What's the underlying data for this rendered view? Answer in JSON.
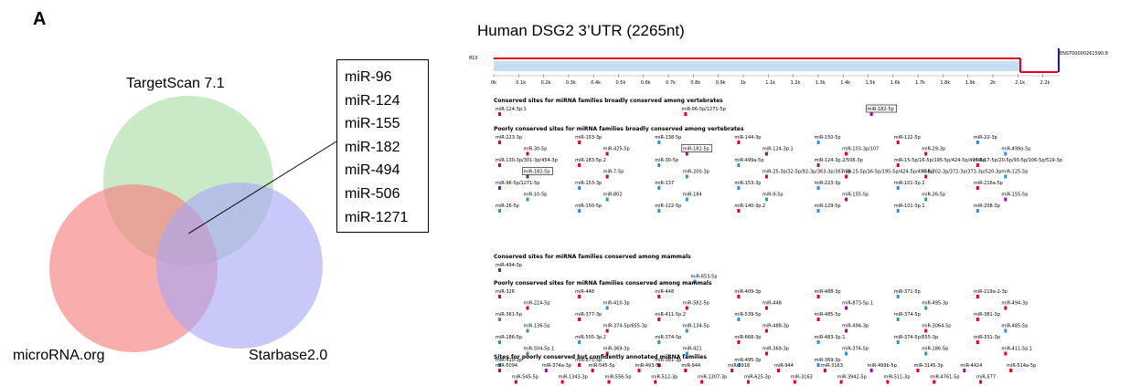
{
  "panel_label": "A",
  "venn": {
    "labels": {
      "targetscan": "TargetScan 7.1",
      "microrna": "microRNA.org",
      "starbase": "Starbase2.0"
    },
    "colors": {
      "targetscan": "#a9dca4",
      "microrna": "#f77b7b",
      "starbase": "#a6a6f5"
    },
    "shared_mirnas": [
      "miR-96",
      "miR-124",
      "miR-155",
      "miR-182",
      "miR-494",
      "miR-506",
      "miR-1271"
    ]
  },
  "utr_panel": {
    "title": "Human DSG2 3’UTR (2265nt)",
    "row_label": "810",
    "transcript_id": "ENST00000261590.8",
    "axis_ticks": [
      "0k",
      "0.1k",
      "0.2k",
      "0.3k",
      "0.4k",
      "0.5k",
      "0.6k",
      "0.7k",
      "0.8k",
      "0.9k",
      "1k",
      "1.1k",
      "1.2k",
      "1.3k",
      "1.4k",
      "1.5k",
      "1.6k",
      "1.7k",
      "1.8k",
      "1.9k",
      "2k",
      "2.1k",
      "2.2k"
    ],
    "colors": {
      "line": "#e4001b",
      "utr_fill": "#c7dff0",
      "end_bar": "#1515d8",
      "mark_red": "#e4001b",
      "mark_purple": "#8a1a8a",
      "mark_blue": "#2f8fd6"
    },
    "sections": [
      {
        "header": "Conserved sites for miRNA families broadly conserved among vertebrates",
        "sites": [
          {
            "label": "miR-124-3p.1",
            "c": "mark_red"
          },
          {
            "label": "miR-96-5p/1271-5p",
            "c": "mark_red"
          },
          {
            "label": "miR-182-5p",
            "c": "mark_purple",
            "boxed": true
          }
        ]
      },
      {
        "header": "Poorly conserved sites for miRNA families broadly conserved among vertebrates",
        "sites": [
          {
            "label": "miR-223-3p",
            "c": "mark_red"
          },
          {
            "label": "miR-153-3p",
            "c": "mark_red"
          },
          {
            "label": "miR-138-5p",
            "c": "mark_blue"
          },
          {
            "label": "miR-144-3p",
            "c": "mark_red"
          },
          {
            "label": "miR-150-5p",
            "c": "mark_blue"
          },
          {
            "label": "miR-122-5p",
            "c": "mark_red"
          },
          {
            "label": "miR-22-3p",
            "c": "mark_blue"
          },
          {
            "label": "miR-30-5p",
            "c": "mark_red"
          },
          {
            "label": "miR-425-5p",
            "c": "mark_red"
          },
          {
            "label": "miR-182-5p",
            "c": "mark_purple",
            "boxed": true
          },
          {
            "label": "miR-124-3p.1",
            "c": "mark_purple"
          },
          {
            "label": "miR-103-3p/107",
            "c": "mark_red"
          },
          {
            "label": "miR-29-3p",
            "c": "mark_red"
          },
          {
            "label": "miR-499a-5p",
            "c": "mark_blue"
          },
          {
            "label": "miR-130-3p/301-3p/454-3p",
            "c": "mark_red"
          },
          {
            "label": "miR-183-5p.2",
            "c": "mark_red"
          },
          {
            "label": "miR-30-5p",
            "c": "mark_blue"
          },
          {
            "label": "miR-499a-5p",
            "c": "mark_blue"
          },
          {
            "label": "miR-124-3p.2/506-3p",
            "c": "mark_purple"
          },
          {
            "label": "miR-15-5p/16-5p/195-5p/424-5p/497-5p",
            "c": "mark_red"
          },
          {
            "label": "miR-17-5p/20-5p/93-5p/106-5p/519-3p",
            "c": "mark_red"
          },
          {
            "label": "miR-182-5p",
            "c": "mark_purple",
            "boxed": true
          },
          {
            "label": "miR-7-5p",
            "c": "mark_red"
          },
          {
            "label": "miR-200-3p",
            "c": "mark_blue"
          },
          {
            "label": "miR-25-3p/32-5p/92-3p/363-3p/367-3p",
            "c": "mark_red"
          },
          {
            "label": "miR-15-5p/16-5p/195-5p/424-5p/497-5p",
            "c": "mark_red"
          },
          {
            "label": "miR-302-3p/372-3p/373-3p/520-3p",
            "c": "mark_red"
          },
          {
            "label": "miR-125-5p",
            "c": "mark_blue"
          },
          {
            "label": "miR-96-5p/1271-5p",
            "c": "mark_purple"
          },
          {
            "label": "miR-153-3p",
            "c": "mark_blue"
          },
          {
            "label": "miR-137",
            "c": "mark_blue"
          },
          {
            "label": "miR-153-3p",
            "c": "mark_blue"
          },
          {
            "label": "miR-223-3p",
            "c": "mark_blue"
          },
          {
            "label": "miR-101-3p.2",
            "c": "mark_blue"
          },
          {
            "label": "miR-216a-5p",
            "c": "mark_red"
          },
          {
            "label": "miR-10-5p",
            "c": "mark_blue"
          },
          {
            "label": "miR-802",
            "c": "mark_blue"
          },
          {
            "label": "miR-184",
            "c": "mark_blue"
          },
          {
            "label": "miR-9-5p",
            "c": "mark_blue"
          },
          {
            "label": "miR-155-5p",
            "c": "mark_purple"
          },
          {
            "label": "miR-26-5p",
            "c": "mark_blue"
          },
          {
            "label": "miR-155-5p",
            "c": "mark_purple"
          },
          {
            "label": "miR-26-5p",
            "c": "mark_blue"
          },
          {
            "label": "miR-150-5p",
            "c": "mark_blue"
          },
          {
            "label": "miR-122-5p",
            "c": "mark_blue"
          },
          {
            "label": "miR-140-3p.2",
            "c": "mark_red"
          },
          {
            "label": "miR-129-5p",
            "c": "mark_blue"
          },
          {
            "label": "miR-101-3p.1",
            "c": "mark_blue"
          },
          {
            "label": "miR-208-3p",
            "c": "mark_blue"
          }
        ]
      },
      {
        "header": "Conserved sites for miRNA families conserved among mammals",
        "sites": [
          {
            "label": "miR-494-3p",
            "c": "mark_purple"
          },
          {
            "label": "miR-653-5p",
            "c": "mark_blue"
          }
        ]
      },
      {
        "header": "Poorly conserved sites for miRNA families conserved among mammals",
        "sites": [
          {
            "label": "miR-326",
            "c": "mark_red"
          },
          {
            "label": "miR-448",
            "c": "mark_red"
          },
          {
            "label": "miR-448",
            "c": "mark_red"
          },
          {
            "label": "miR-409-3p",
            "c": "mark_red"
          },
          {
            "label": "miR-488-3p",
            "c": "mark_red"
          },
          {
            "label": "miR-371-5p",
            "c": "mark_blue"
          },
          {
            "label": "miR-219a-2-3p",
            "c": "mark_red"
          },
          {
            "label": "miR-224-5p",
            "c": "mark_red"
          },
          {
            "label": "miR-410-3p",
            "c": "mark_blue"
          },
          {
            "label": "miR-582-5p",
            "c": "mark_red"
          },
          {
            "label": "miR-448",
            "c": "mark_red"
          },
          {
            "label": "miR-873-5p.1",
            "c": "mark_purple"
          },
          {
            "label": "miR-495-3p",
            "c": "mark_blue"
          },
          {
            "label": "miR-494-3p",
            "c": "mark_red"
          },
          {
            "label": "miR-361-5p",
            "c": "mark_blue"
          },
          {
            "label": "miR-377-3p",
            "c": "mark_red"
          },
          {
            "label": "miR-411-5p.2",
            "c": "mark_red"
          },
          {
            "label": "miR-539-5p",
            "c": "mark_blue"
          },
          {
            "label": "miR-485-5p",
            "c": "mark_red"
          },
          {
            "label": "miR-374-5p",
            "c": "mark_blue"
          },
          {
            "label": "miR-381-3p",
            "c": "mark_red"
          },
          {
            "label": "miR-136-5p",
            "c": "mark_blue"
          },
          {
            "label": "miR-374-5p/655-3p",
            "c": "mark_red"
          },
          {
            "label": "miR-134-5p",
            "c": "mark_blue"
          },
          {
            "label": "miR-488-3p",
            "c": "mark_red"
          },
          {
            "label": "miR-494-3p",
            "c": "mark_purple"
          },
          {
            "label": "miR-3064-5p",
            "c": "mark_red"
          },
          {
            "label": "miR-485-5p",
            "c": "mark_blue"
          },
          {
            "label": "miR-186-5p",
            "c": "mark_blue"
          },
          {
            "label": "miR-505-3p.2",
            "c": "mark_blue"
          },
          {
            "label": "miR-374-5p",
            "c": "mark_blue"
          },
          {
            "label": "miR-668-3p",
            "c": "mark_red"
          },
          {
            "label": "miR-483-3p.1",
            "c": "mark_blue"
          },
          {
            "label": "miR-374-5p/655-3p",
            "c": "mark_blue"
          },
          {
            "label": "miR-331-3p",
            "c": "mark_red"
          },
          {
            "label": "miR-504-5p.1",
            "c": "mark_blue"
          },
          {
            "label": "miR-369-3p",
            "c": "mark_red"
          },
          {
            "label": "miR-421",
            "c": "mark_blue"
          },
          {
            "label": "miR-369-3p",
            "c": "mark_red"
          },
          {
            "label": "miR-374-5p",
            "c": "mark_blue"
          },
          {
            "label": "miR-186-5p",
            "c": "mark_blue"
          },
          {
            "label": "miR-411-5p.1",
            "c": "mark_red"
          },
          {
            "label": "miR-410-3p",
            "c": "mark_blue"
          },
          {
            "label": "miR-875-5p",
            "c": "mark_red"
          },
          {
            "label": "miR-381-3p",
            "c": "mark_red"
          },
          {
            "label": "miR-495-3p",
            "c": "mark_blue"
          },
          {
            "label": "miR-369-3p",
            "c": "mark_blue"
          }
        ]
      },
      {
        "header": "Sites for poorly conserved but confidently annotated miRNA families",
        "sites": [
          {
            "label": "miR-5094",
            "c": "mark_red"
          },
          {
            "label": "miR-374a-3p",
            "c": "mark_purple"
          },
          {
            "label": "miR-545-5p",
            "c": "mark_red"
          },
          {
            "label": "miR-493-5p",
            "c": "mark_red"
          },
          {
            "label": "miR-944",
            "c": "mark_red"
          },
          {
            "label": "miR-3918",
            "c": "mark_red"
          },
          {
            "label": "miR-944",
            "c": "mark_red"
          },
          {
            "label": "miR-3163",
            "c": "mark_red"
          },
          {
            "label": "miR-499b-5p",
            "c": "mark_purple"
          },
          {
            "label": "miR-3145-3p",
            "c": "mark_red"
          },
          {
            "label": "miR-4424",
            "c": "mark_purple"
          },
          {
            "label": "miR-514a-5p",
            "c": "mark_red"
          },
          {
            "label": "miR-545-5p",
            "c": "mark_red"
          },
          {
            "label": "miR-1343-3p",
            "c": "mark_red"
          },
          {
            "label": "miR-556-5p",
            "c": "mark_red"
          },
          {
            "label": "miR-512-3p",
            "c": "mark_red"
          },
          {
            "label": "miR-1307-3p",
            "c": "mark_red"
          },
          {
            "label": "miR-625-3p",
            "c": "mark_red"
          },
          {
            "label": "miR-3163",
            "c": "mark_red"
          },
          {
            "label": "miR-3942-5p",
            "c": "mark_red"
          },
          {
            "label": "miR-511-3p",
            "c": "mark_red"
          },
          {
            "label": "miR-4761-5p",
            "c": "mark_red"
          },
          {
            "label": "miR-577",
            "c": "mark_red"
          }
        ]
      }
    ]
  }
}
